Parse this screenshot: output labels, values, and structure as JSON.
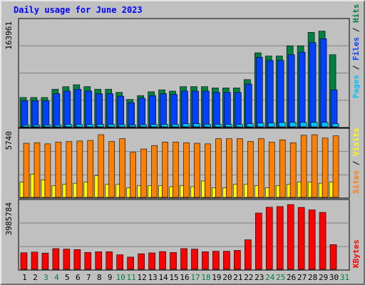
{
  "title": "Daily usage for June 2023",
  "colors": {
    "panel_bg": "#c0c0c0",
    "frame_bg": "#b8b8b8",
    "pages": "#00c0ff",
    "files": "#0040ff",
    "hits": "#008040",
    "visits": "#ffff00",
    "sites": "#ff8000",
    "kbytes": "#ff0000",
    "weekend_label": "#008040",
    "weekday_label": "#000000"
  },
  "chart_data": [
    {
      "type": "bar",
      "panel": "hits",
      "y_tick_label": "163961",
      "ylim": [
        0,
        163961
      ],
      "legend": [
        "Pages",
        "Files",
        "Hits"
      ],
      "x": [
        1,
        2,
        3,
        4,
        5,
        6,
        7,
        8,
        9,
        10,
        11,
        12,
        13,
        14,
        15,
        16,
        17,
        18,
        19,
        20,
        21,
        22,
        23,
        24,
        25,
        26,
        27,
        28,
        29,
        30
      ],
      "series": [
        {
          "name": "Hits",
          "values": [
            47000,
            47000,
            47000,
            60000,
            64000,
            67000,
            64000,
            60000,
            60000,
            55000,
            44000,
            50000,
            56000,
            59000,
            57000,
            64000,
            64000,
            64000,
            62000,
            62000,
            62000,
            75000,
            117000,
            112000,
            112000,
            128000,
            128000,
            149000,
            151000,
            114000
          ]
        },
        {
          "name": "Files",
          "values": [
            42000,
            42000,
            42000,
            53000,
            57000,
            60000,
            57000,
            53000,
            53000,
            49000,
            39000,
            46000,
            50000,
            53000,
            52000,
            57000,
            57000,
            57000,
            55000,
            55000,
            55000,
            68000,
            110000,
            105000,
            105000,
            114000,
            118000,
            133000,
            139000,
            59000
          ]
        },
        {
          "name": "Pages",
          "values": [
            4000,
            4000,
            4000,
            4000,
            5000,
            5000,
            5000,
            5000,
            5000,
            4500,
            4000,
            4500,
            5000,
            5000,
            5000,
            6000,
            6000,
            5000,
            5000,
            5000,
            5000,
            6000,
            7000,
            7000,
            8000,
            8000,
            8000,
            8000,
            8000,
            6000
          ]
        }
      ]
    },
    {
      "type": "bar",
      "panel": "visits",
      "y_tick_label": "5740",
      "ylim": [
        0,
        5740
      ],
      "legend": [
        "Sites",
        "Visits"
      ],
      "x": [
        1,
        2,
        3,
        4,
        5,
        6,
        7,
        8,
        9,
        10,
        11,
        12,
        13,
        14,
        15,
        16,
        17,
        18,
        19,
        20,
        21,
        22,
        23,
        24,
        25,
        26,
        27,
        28,
        29,
        30
      ],
      "series": [
        {
          "name": "Sites",
          "values": [
            4800,
            4850,
            4750,
            4900,
            4950,
            5000,
            5050,
            5550,
            4950,
            5200,
            4000,
            4300,
            4600,
            4900,
            4900,
            4850,
            4800,
            4750,
            5200,
            5200,
            5200,
            4950,
            5200,
            4900,
            5100,
            4850,
            5500,
            5550,
            5250,
            5450
          ]
        },
        {
          "name": "Visits",
          "values": [
            1400,
            2100,
            1600,
            1100,
            1200,
            1300,
            1400,
            1950,
            1200,
            1200,
            900,
            1100,
            1100,
            1100,
            1000,
            1100,
            1000,
            1500,
            900,
            900,
            1200,
            1200,
            1100,
            900,
            1100,
            1200,
            1400,
            1400,
            1300,
            1400
          ]
        }
      ]
    },
    {
      "type": "bar",
      "panel": "kbytes",
      "y_tick_label": "3985784",
      "ylim": [
        0,
        3985784
      ],
      "legend": [
        "KBytes"
      ],
      "x": [
        1,
        2,
        3,
        4,
        5,
        6,
        7,
        8,
        9,
        10,
        11,
        12,
        13,
        14,
        15,
        16,
        17,
        18,
        19,
        20,
        21,
        22,
        23,
        24,
        25,
        26,
        27,
        28,
        29,
        30
      ],
      "series": [
        {
          "name": "KBytes",
          "values": [
            1040000,
            1080000,
            1020000,
            1290000,
            1260000,
            1230000,
            1060000,
            1100000,
            1100000,
            920000,
            780000,
            980000,
            1030000,
            1110000,
            1060000,
            1290000,
            1260000,
            1100000,
            1130000,
            1130000,
            1180000,
            1820000,
            3430000,
            3780000,
            3820000,
            3940000,
            3770000,
            3620000,
            3470000,
            1530000
          ]
        }
      ]
    }
  ],
  "x_axis": {
    "labels": [
      "1",
      "2",
      "3",
      "4",
      "5",
      "6",
      "7",
      "8",
      "9",
      "10",
      "11",
      "12",
      "13",
      "14",
      "15",
      "16",
      "17",
      "18",
      "19",
      "20",
      "21",
      "22",
      "23",
      "24",
      "25",
      "26",
      "27",
      "28",
      "29",
      "30",
      "31"
    ],
    "weekend_days": [
      "3",
      "4",
      "10",
      "11",
      "17",
      "18",
      "24",
      "25",
      "31"
    ]
  }
}
